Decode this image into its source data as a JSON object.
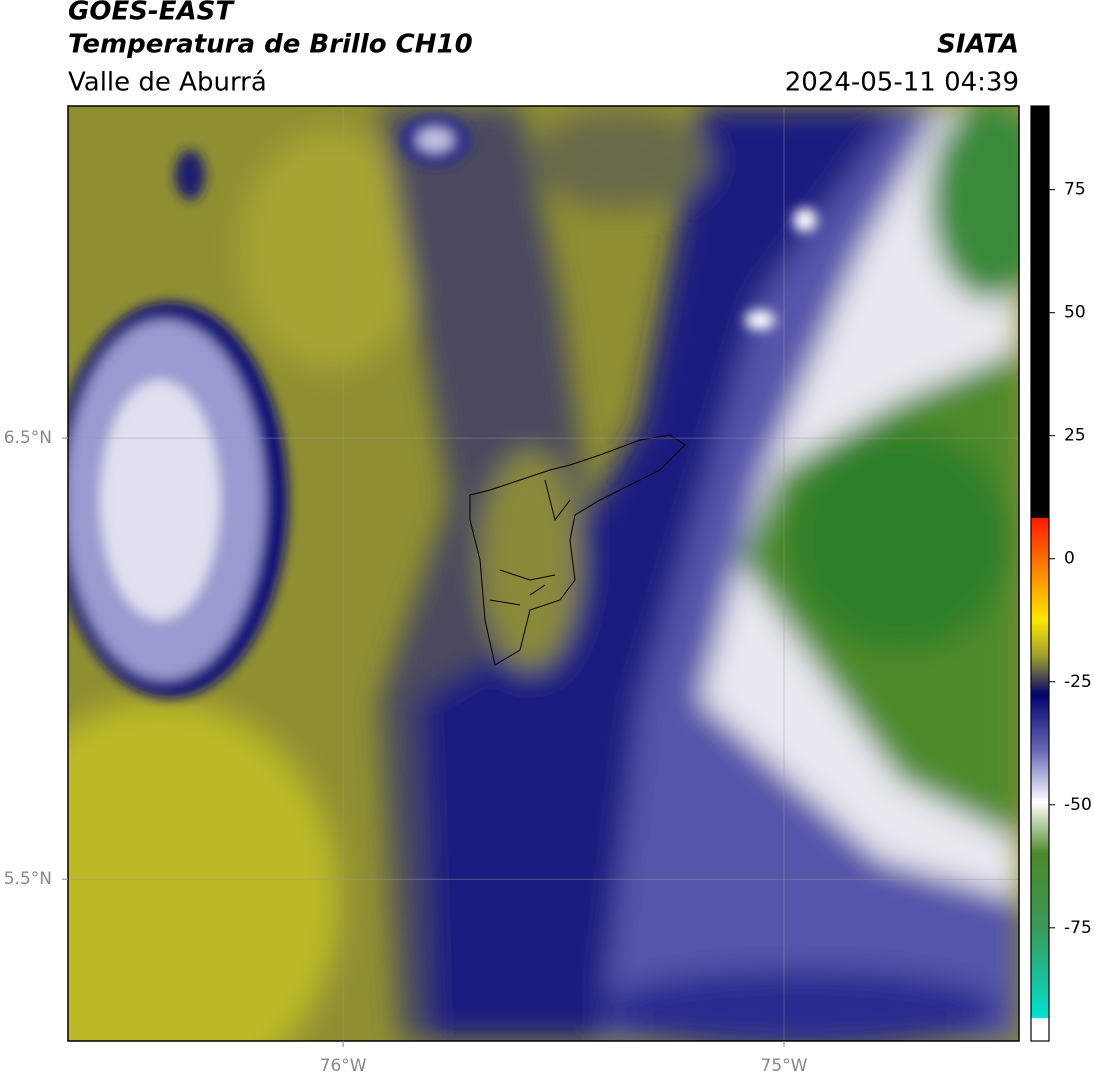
{
  "header": {
    "title": "GOES-EAST",
    "subtitle": "Temperatura de Brillo CH10",
    "region": "Valle de Aburrá",
    "source": "SIATA",
    "datetime": "2024-05-11 04:39"
  },
  "map": {
    "xlim": [
      -76.624,
      -74.467
    ],
    "ylim": [
      5.133,
      7.253
    ],
    "xticks": [
      {
        "value": -76,
        "label": "76°W"
      },
      {
        "value": -75,
        "label": "75°W"
      }
    ],
    "yticks": [
      {
        "value": 6.5,
        "label": "6.5°N"
      },
      {
        "value": 5.5,
        "label": "5.5°N"
      }
    ],
    "grid": true
  },
  "colorbar": {
    "lim": [
      -98,
      92
    ],
    "ticks": [
      75,
      50,
      25,
      0,
      -25,
      -50,
      -75
    ]
  }
}
